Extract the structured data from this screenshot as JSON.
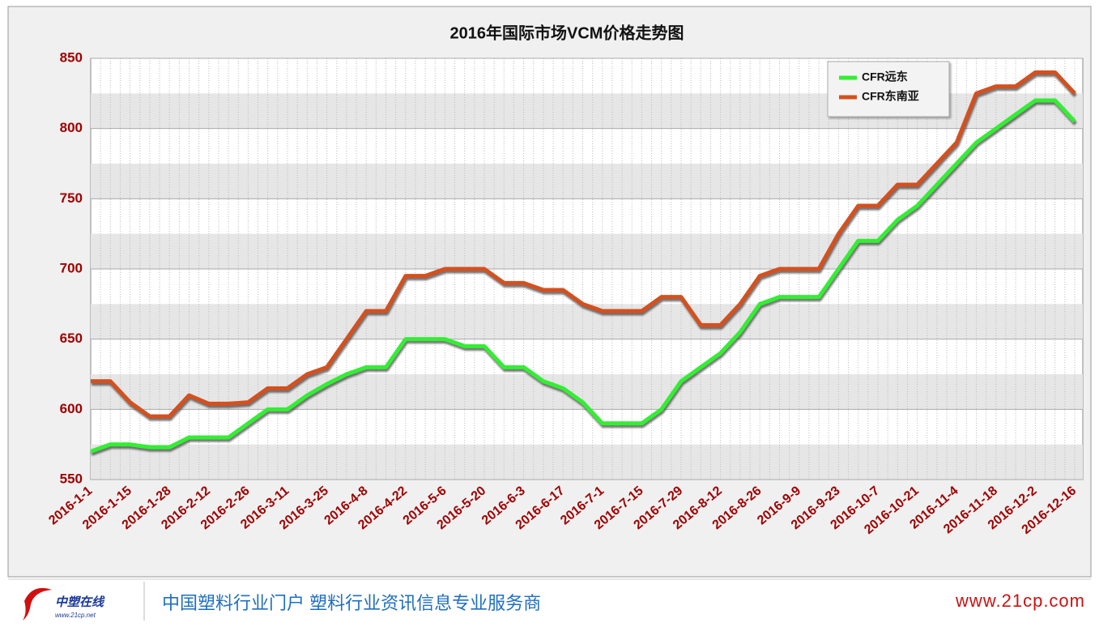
{
  "chart_data": {
    "type": "line",
    "title": "2016年国际市场VCM价格走势图",
    "categories": [
      "2016-1-1",
      null,
      "2016-1-15",
      null,
      "2016-1-28",
      null,
      "2016-2-12",
      null,
      "2016-2-26",
      null,
      "2016-3-11",
      null,
      "2016-3-25",
      null,
      "2016-4-8",
      null,
      "2016-4-22",
      null,
      "2016-5-6",
      null,
      "2016-5-20",
      null,
      "2016-6-3",
      null,
      "2016-6-17",
      null,
      "2016-7-1",
      null,
      "2016-7-15",
      null,
      "2016-7-29",
      null,
      "2016-8-12",
      null,
      "2016-8-26",
      null,
      "2016-9-9",
      null,
      "2016-9-23",
      null,
      "2016-10-7",
      null,
      "2016-10-21",
      null,
      "2016-11-4",
      null,
      "2016-11-18",
      null,
      "2016-12-2",
      null,
      "2016-12-16"
    ],
    "series": [
      {
        "name": "CFR远东",
        "color": "#33ee33",
        "values": [
          570,
          575,
          575,
          573,
          573,
          580,
          580,
          580,
          590,
          600,
          600,
          610,
          618,
          625,
          630,
          630,
          650,
          650,
          650,
          645,
          645,
          630,
          630,
          620,
          615,
          605,
          590,
          590,
          590,
          600,
          620,
          630,
          640,
          655,
          675,
          680,
          680,
          680,
          700,
          720,
          720,
          735,
          745,
          760,
          775,
          790,
          800,
          810,
          820,
          820,
          805
        ]
      },
      {
        "name": "CFR东南亚",
        "color": "#d4501e",
        "values": [
          620,
          620,
          605,
          595,
          595,
          610,
          604,
          604,
          605,
          615,
          615,
          625,
          630,
          650,
          670,
          670,
          695,
          695,
          700,
          700,
          700,
          690,
          690,
          685,
          685,
          675,
          670,
          670,
          670,
          680,
          680,
          660,
          660,
          675,
          695,
          700,
          700,
          700,
          725,
          745,
          745,
          760,
          760,
          775,
          790,
          825,
          830,
          830,
          840,
          840,
          825
        ]
      }
    ],
    "ylim": [
      550,
      850
    ],
    "yticks": [
      550,
      600,
      650,
      700,
      750,
      800,
      850
    ],
    "grid": true,
    "legend": "top-right"
  },
  "footer": {
    "logo": "中塑在线",
    "logo_url": "www.21cp.net",
    "slogan": "中国塑料行业门户 塑料行业资讯信息专业服务商",
    "site": "www.21cp.com"
  }
}
